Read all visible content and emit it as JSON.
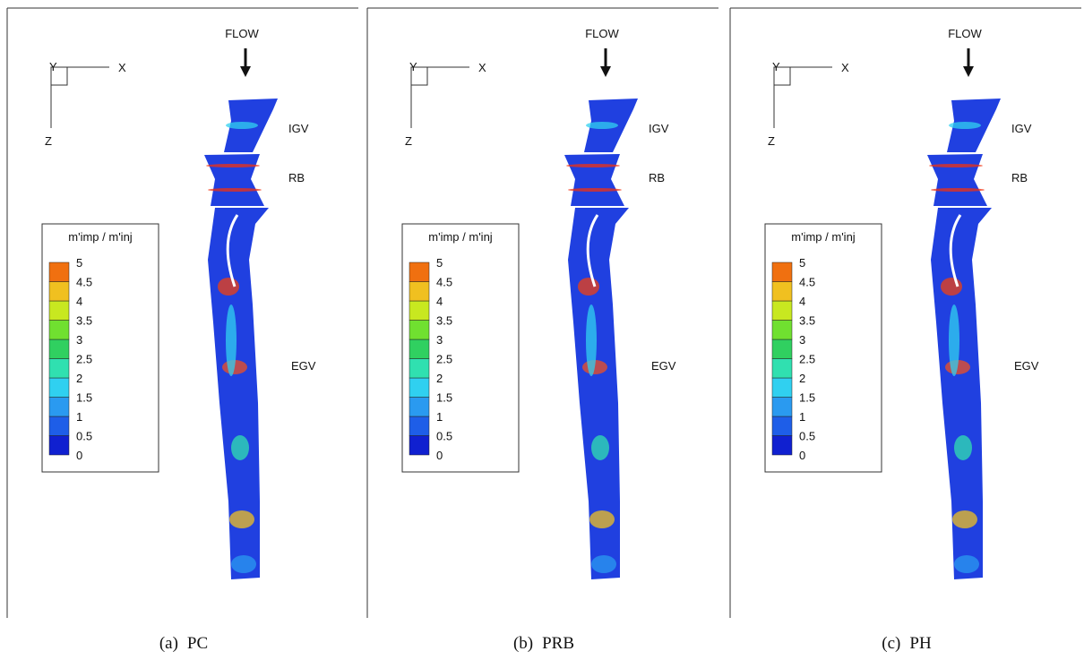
{
  "panels": [
    {
      "tag": "(a)",
      "name": "PC",
      "flow": "FLOW",
      "igv": "IGV",
      "rb": "RB",
      "egv": "EGV",
      "axis_x": "X",
      "axis_y": "Y",
      "axis_z": "Z",
      "legend": {
        "title": "m'imp / m'inj",
        "levels": [
          "0",
          "0.5",
          "1",
          "1.5",
          "2",
          "2.5",
          "3",
          "3.5",
          "4",
          "4.5",
          "5"
        ]
      }
    },
    {
      "tag": "(b)",
      "name": "PRB",
      "flow": "FLOW",
      "igv": "IGV",
      "rb": "RB",
      "egv": "EGV",
      "axis_x": "X",
      "axis_y": "Y",
      "axis_z": "Z",
      "legend": {
        "title": "m'imp / m'inj",
        "levels": [
          "0",
          "0.5",
          "1",
          "1.5",
          "2",
          "2.5",
          "3",
          "3.5",
          "4",
          "4.5",
          "5"
        ]
      }
    },
    {
      "tag": "(c)",
      "name": "PH",
      "flow": "FLOW",
      "igv": "IGV",
      "rb": "RB",
      "egv": "EGV",
      "axis_x": "X",
      "axis_y": "Y",
      "axis_z": "Z",
      "legend": {
        "title": "m'imp / m'inj",
        "levels": [
          "0",
          "0.5",
          "1",
          "1.5",
          "2",
          "2.5",
          "3",
          "3.5",
          "4",
          "4.5",
          "5"
        ]
      }
    }
  ]
}
